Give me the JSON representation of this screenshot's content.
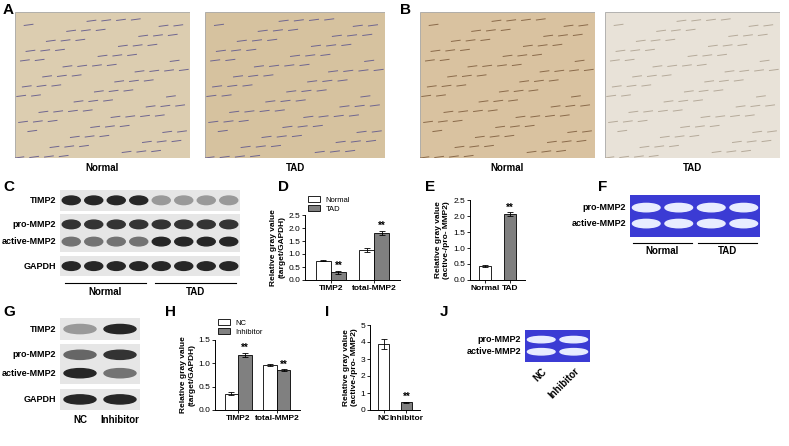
{
  "panels": {
    "A": {
      "title": "A",
      "images": [
        "Normal",
        "TAD"
      ]
    },
    "B": {
      "title": "B",
      "images": [
        "Normal",
        "TAD"
      ]
    },
    "C": {
      "title": "C",
      "rows": [
        "TIMP2",
        "pro-MMP2",
        "active-MMP2",
        "GAPDH"
      ],
      "groups": [
        "Normal",
        "TAD"
      ]
    },
    "F": {
      "title": "F",
      "rows": [
        "pro-MMP2",
        "active-MMP2"
      ],
      "groups": [
        "Normal",
        "TAD"
      ]
    },
    "G": {
      "title": "G",
      "rows": [
        "TIMP2",
        "pro-MMP2",
        "active-MMP2",
        "GAPDH"
      ],
      "lanes": [
        "NC",
        "Inhibitor"
      ]
    },
    "J": {
      "title": "J",
      "rows": [
        "pro-MMP2",
        "active-MMP2"
      ],
      "lanes": [
        "NC",
        "Inhibitor"
      ]
    }
  },
  "chart_data": [
    {
      "title": "D",
      "type": "bar",
      "categories": [
        "TIMP2",
        "total-MMP2"
      ],
      "y_label": "Relative gray value\n(target/GAPDH)",
      "series": [
        {
          "name": "Normal",
          "color": "#ffffff",
          "values": [
            0.75,
            1.15
          ],
          "errors": [
            0.03,
            0.07
          ],
          "marks": [
            null,
            null
          ]
        },
        {
          "name": "TAD",
          "color": "#808080",
          "values": [
            0.3,
            1.8
          ],
          "errors": [
            0.05,
            0.08
          ],
          "marks": [
            "**",
            "**"
          ]
        }
      ],
      "ylim": [
        0,
        2.5
      ],
      "yticks": [
        {
          "value": 0,
          "label": "0.0"
        },
        {
          "value": 0.5,
          "label": "0.5"
        },
        {
          "value": 1,
          "label": "1.0"
        },
        {
          "value": 1.5,
          "label": "1.5"
        },
        {
          "value": 2,
          "label": "2.0"
        },
        {
          "value": 2.5,
          "label": "2.5"
        }
      ],
      "legend": "upper left"
    },
    {
      "title": "E",
      "type": "bar",
      "categories": [
        "Normal",
        "TAD"
      ],
      "y_label": "Relative gray value\n(active-/pro- MMP2)",
      "values": [
        0.45,
        2.05
      ],
      "errors": [
        0.03,
        0.06
      ],
      "marks": [
        null,
        "**"
      ],
      "colors": [
        "#ffffff",
        "#808080"
      ],
      "ylim": [
        0,
        2.5
      ],
      "yticks": [
        {
          "value": 0,
          "label": "0.0"
        },
        {
          "value": 0.5,
          "label": "0.5"
        },
        {
          "value": 1,
          "label": "1.0"
        },
        {
          "value": 1.5,
          "label": "1.5"
        },
        {
          "value": 2,
          "label": "2.0"
        },
        {
          "value": 2.5,
          "label": "2.5"
        }
      ]
    },
    {
      "title": "H",
      "type": "bar",
      "categories": [
        "TIMP2",
        "total-MMP2"
      ],
      "y_label": "Relative gray value\n(target/GAPDH)",
      "series": [
        {
          "name": "NC",
          "color": "#ffffff",
          "values": [
            0.35,
            0.97
          ],
          "errors": [
            0.03,
            0.02
          ],
          "marks": [
            null,
            null
          ]
        },
        {
          "name": "Inhibitor",
          "color": "#808080",
          "values": [
            1.18,
            0.85
          ],
          "errors": [
            0.04,
            0.02
          ],
          "marks": [
            "**",
            "**"
          ]
        }
      ],
      "ylim": [
        0,
        1.5
      ],
      "yticks": [
        {
          "value": 0,
          "label": "0.0"
        },
        {
          "value": 0.5,
          "label": "0.5"
        },
        {
          "value": 1,
          "label": "1.0"
        },
        {
          "value": 1.5,
          "label": "1.5"
        }
      ],
      "legend": "upper left"
    },
    {
      "title": "I",
      "type": "bar",
      "categories": [
        "NC",
        "Inhibitor"
      ],
      "y_label": "Relative gray value\n(active-/pro- MMP2)",
      "values": [
        3.9,
        0.45
      ],
      "errors": [
        0.3,
        0.05
      ],
      "marks": [
        null,
        "**"
      ],
      "colors": [
        "#ffffff",
        "#808080"
      ],
      "ylim": [
        0,
        5
      ],
      "yticks": [
        0,
        1,
        2,
        3,
        4,
        5
      ]
    }
  ]
}
